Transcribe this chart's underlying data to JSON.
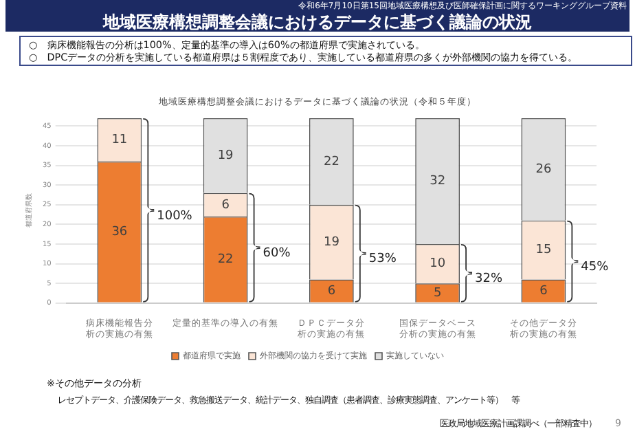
{
  "chart_data": {
    "type": "bar",
    "title": "地域医療構想調整会議におけるデータに基づく議論の状況",
    "subtitle": "地域医療構想調整会議におけるデータに基づく議論の状況（令和５年度）",
    "ylabel": "都道府県数",
    "categories": [
      "病床機能報告分析の実施の有無",
      "定量的基準の導入の有無",
      "ＤＰＣデータ分析の実施の有無",
      "国保データベース分析の実施の有無",
      "その他データ分析の実施の有無"
    ],
    "series": [
      {
        "name": "都道府県で実施",
        "color": "#ed7d31",
        "values": [
          36,
          22,
          6,
          5,
          6
        ]
      },
      {
        "name": "外部機関の協力を受けて実施",
        "color": "#fbe5d6",
        "values": [
          11,
          6,
          19,
          10,
          15
        ]
      },
      {
        "name": "実施していない",
        "color": "#e0e0e0",
        "values": [
          null,
          19,
          22,
          32,
          26
        ]
      }
    ],
    "stacked": true,
    "data_labels": true,
    "ylim": [
      0,
      47
    ],
    "yticks": [
      0,
      5,
      10,
      15,
      20,
      25,
      30,
      35,
      40,
      45
    ],
    "grid": "y",
    "legend": "bottom",
    "annotations": [
      "令和6年7月10日第15回地域医療構想及び医師確保計画に関するワーキンググループ資料",
      "○　病床機能報告の分析は100%、定量的基準の導入は60%の都道府県で実施されている。",
      "○　DPCデータの分析を実施している都道府県は５割程度であり、実施している都道府県の多くが外部機関の協力を得ている。",
      "※その他データの分析",
      "レセプトデータ、介護保険データ、救急搬送データ、統計データ、独自調査（患者調査、診療実態調査、アンケート等）　等",
      "医政局地域医療計画課調べ（一部精査中）",
      "9",
      "100%",
      "60%",
      "53%",
      "32%",
      "45%"
    ]
  }
}
